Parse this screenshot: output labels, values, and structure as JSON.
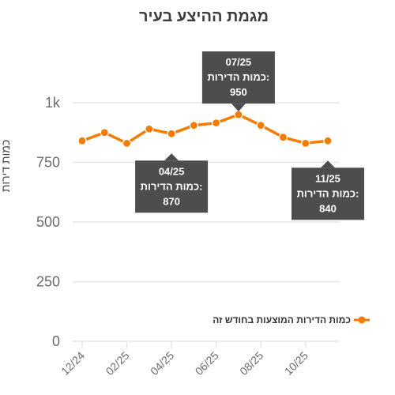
{
  "chart_data": {
    "type": "line",
    "title": "מגמת ההיצע בעיר",
    "ylabel": "כמות דירות",
    "xlabel": "",
    "ylim": [
      0,
      1000
    ],
    "y_ticks": [
      {
        "value": 0,
        "label": "0"
      },
      {
        "value": 250,
        "label": "250"
      },
      {
        "value": 500,
        "label": "500"
      },
      {
        "value": 750,
        "label": "750"
      },
      {
        "value": 1000,
        "label": "1k"
      }
    ],
    "x": [
      "12/24",
      "01/25",
      "02/25",
      "03/25",
      "04/25",
      "05/25",
      "06/25",
      "07/25",
      "08/25",
      "09/25",
      "10/25",
      "11/25"
    ],
    "x_tick_labels": [
      "12/24",
      "02/25",
      "04/25",
      "06/25",
      "08/25",
      "10/25"
    ],
    "grid": true,
    "series": [
      {
        "name": "כמות הדירות המוצעות בחודש זה",
        "color": "#f57c00",
        "values": [
          840,
          875,
          830,
          890,
          870,
          905,
          915,
          950,
          905,
          855,
          830,
          840
        ]
      }
    ],
    "legend_position": "right",
    "annotations": [
      {
        "index": 7,
        "date": "07/25",
        "label": "כמות הדירות:",
        "value": "950",
        "placement": "above"
      },
      {
        "index": 4,
        "date": "04/25",
        "label": "כמות הדירות:",
        "value": "870",
        "placement": "below"
      },
      {
        "index": 11,
        "date": "11/25",
        "label": "כמות הדירות:",
        "value": "840",
        "placement": "below"
      }
    ],
    "colors": {
      "line": "#f57c00",
      "grid": "#e6e6e6",
      "callout": "#4d4d4d"
    }
  }
}
